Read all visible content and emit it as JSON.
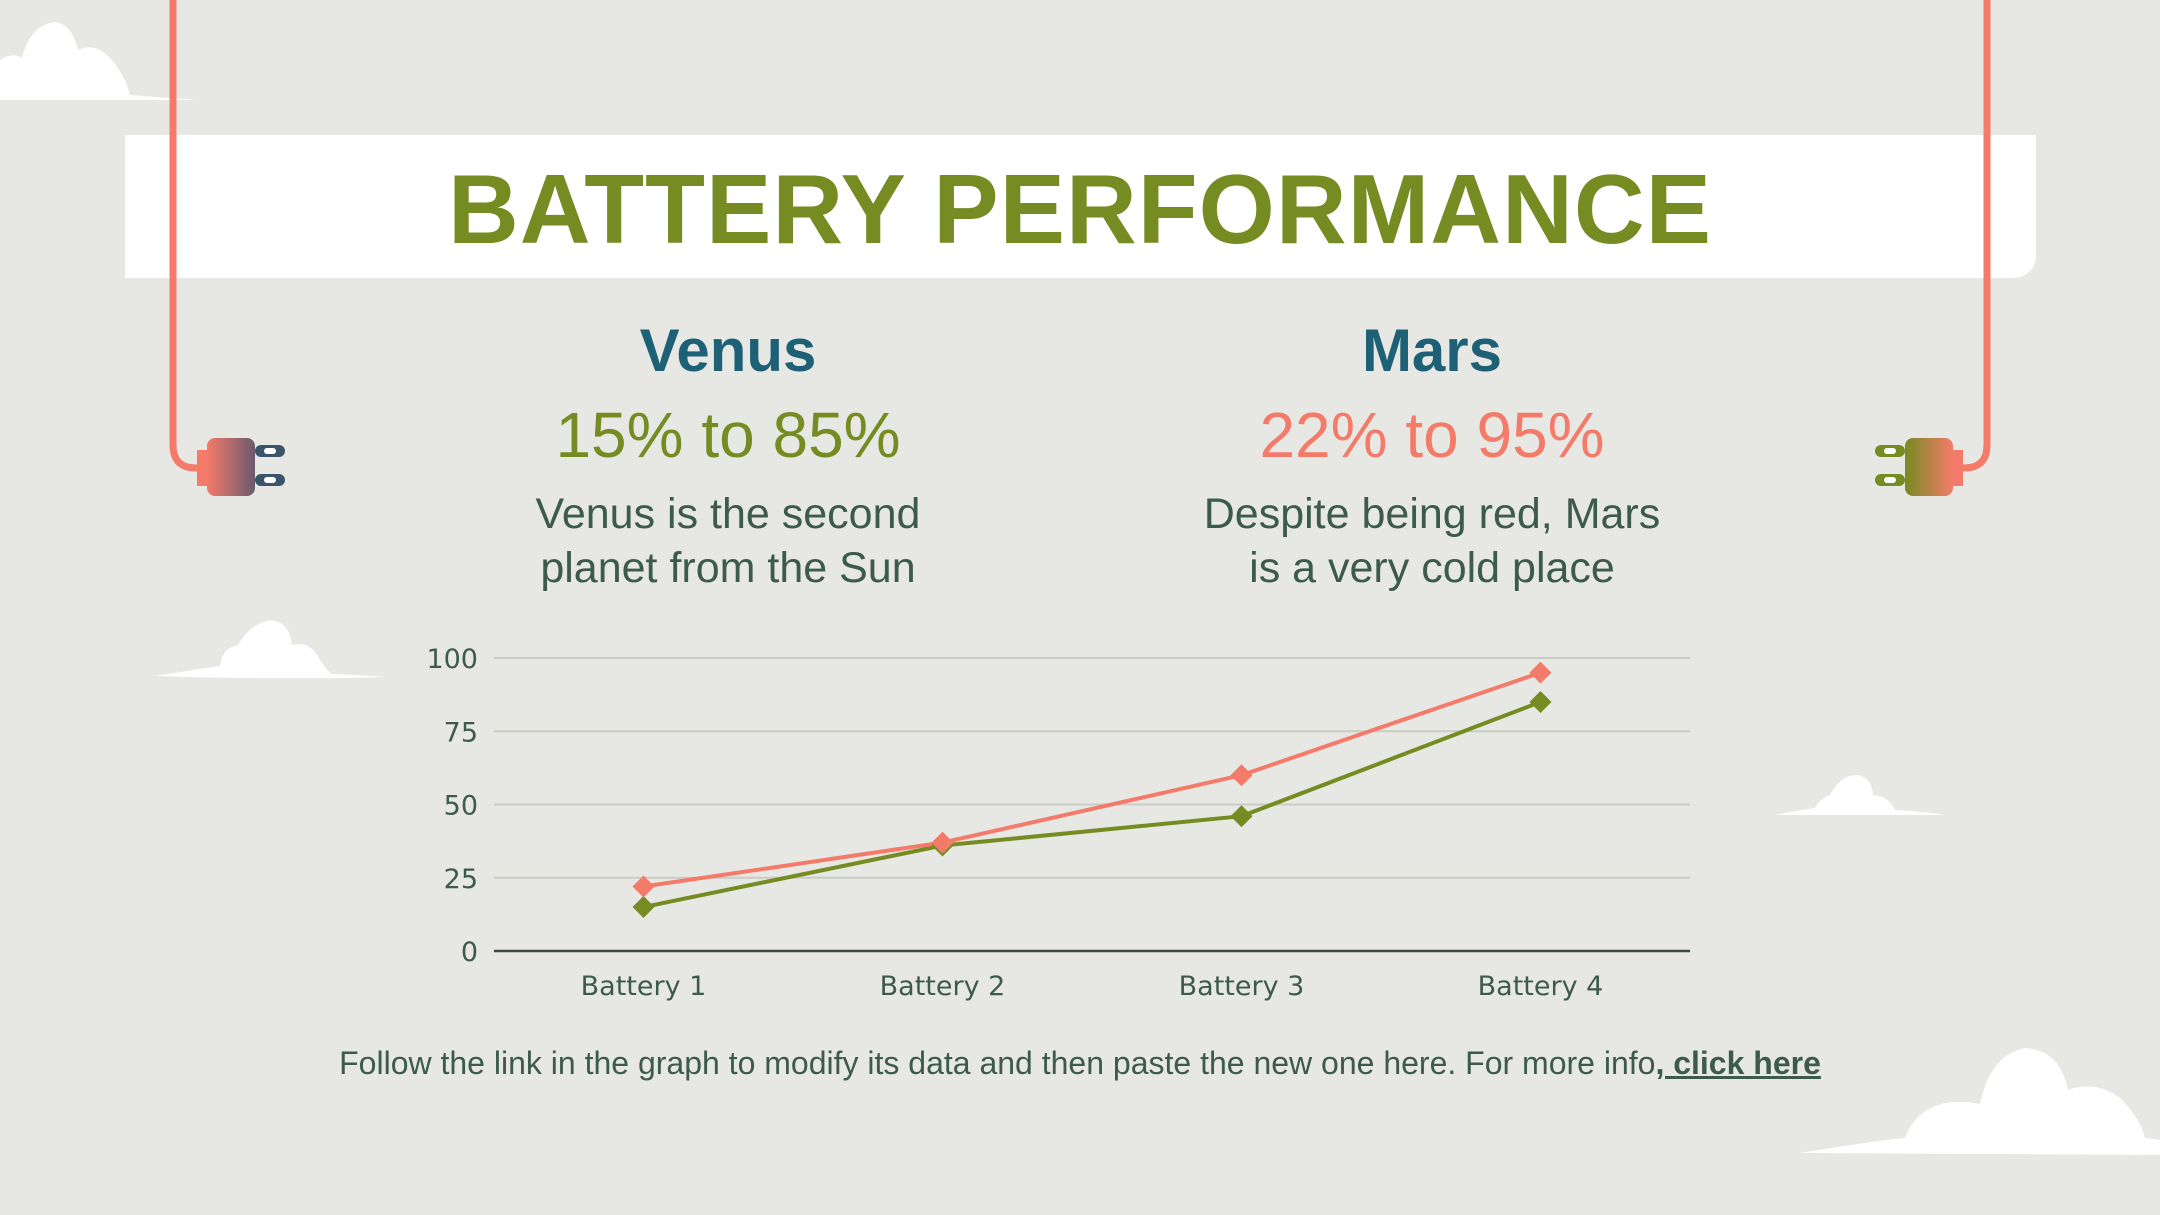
{
  "title": "BATTERY PERFORMANCE",
  "planets": [
    {
      "name": "Venus",
      "range": "15% to 85%",
      "desc_line1": "Venus is the second",
      "desc_line2": "planet from the Sun",
      "color": "#768b22"
    },
    {
      "name": "Mars",
      "range": "22% to 95%",
      "desc_line1": "Despite being red, Mars",
      "desc_line2": "is a very cold place",
      "color": "#f47b6a"
    }
  ],
  "footer": {
    "text": "Follow the link in the graph to modify its data and then paste the new one here. For more info",
    "link": ", click here"
  },
  "colors": {
    "background": "#e7e8e3",
    "title": "#768b22",
    "heading": "#1e6177",
    "body": "#3d5a4f",
    "cord": "#f47b6a"
  },
  "icons": [
    "plug-icon-left",
    "plug-icon-right",
    "cloud-icon"
  ],
  "chart_data": {
    "type": "line",
    "categories": [
      "Battery 1",
      "Battery 2",
      "Battery 3",
      "Battery 4"
    ],
    "series": [
      {
        "name": "Venus",
        "values": [
          15,
          36,
          46,
          85
        ],
        "color": "#768b22"
      },
      {
        "name": "Mars",
        "values": [
          22,
          37,
          60,
          95
        ],
        "color": "#f47b6a"
      }
    ],
    "ylim": [
      0,
      100
    ],
    "yticks": [
      0,
      25,
      50,
      75,
      100
    ],
    "grid": true,
    "marker": "diamond"
  }
}
